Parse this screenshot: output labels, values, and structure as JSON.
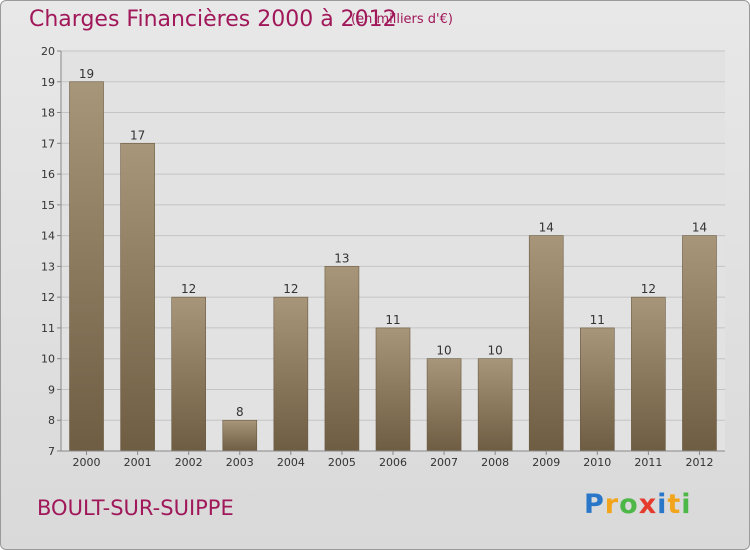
{
  "title": "Charges Financières 2000 à 2012",
  "subtitle": "(en milliers d'€)",
  "commune": "BOULT-SUR-SUIPPE",
  "logo": {
    "p": "P",
    "r": "r",
    "o": "o",
    "x": "x",
    "i": "i",
    "t": "t",
    "i2": "i"
  },
  "chart_data": {
    "type": "bar",
    "categories": [
      "2000",
      "2001",
      "2002",
      "2003",
      "2004",
      "2005",
      "2006",
      "2007",
      "2008",
      "2009",
      "2010",
      "2011",
      "2012"
    ],
    "values": [
      19,
      17,
      12,
      8,
      12,
      13,
      11,
      10,
      10,
      14,
      11,
      12,
      14
    ],
    "ylim": [
      7,
      20
    ],
    "yticks": [
      7,
      8,
      9,
      10,
      11,
      12,
      13,
      14,
      15,
      16,
      17,
      18,
      19,
      20
    ],
    "grid": true,
    "bar_color": "#8c7a5e"
  }
}
